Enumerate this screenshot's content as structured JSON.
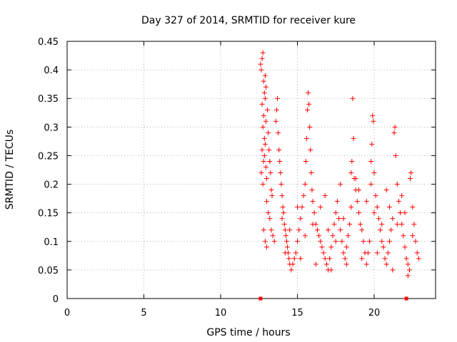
{
  "chart_data": {
    "type": "scatter",
    "title": "Day 327 of 2014, SRMTID for receiver kure",
    "xlabel": "GPS time / hours",
    "ylabel": "SRMTID / TECUs",
    "xlim": [
      0,
      24
    ],
    "ylim": [
      0,
      0.45
    ],
    "x_ticks": [
      0,
      5,
      10,
      15,
      20
    ],
    "x_tick_labels": [
      "0",
      "5",
      "10",
      "15",
      "20"
    ],
    "y_ticks": [
      0,
      0.05,
      0.1,
      0.15,
      0.2,
      0.25,
      0.3,
      0.35,
      0.4,
      0.45
    ],
    "y_tick_labels": [
      "0",
      "0.05",
      "0.1",
      "0.15",
      "0.2",
      "0.25",
      "0.3",
      "0.35",
      "0.4",
      "0.45"
    ],
    "grid": true,
    "marker": "plus",
    "color": "#ff0000",
    "zero_markers": {
      "marker": "square",
      "x": [
        12.6,
        22.1
      ],
      "y": [
        0,
        0
      ]
    },
    "series": [
      {
        "name": "SRMTID",
        "points": [
          [
            12.6,
            0.41
          ],
          [
            12.65,
            0.4
          ],
          [
            12.7,
            0.42
          ],
          [
            12.75,
            0.43
          ],
          [
            12.8,
            0.38
          ],
          [
            12.85,
            0.36
          ],
          [
            12.9,
            0.39
          ],
          [
            12.95,
            0.37
          ],
          [
            12.7,
            0.34
          ],
          [
            12.8,
            0.32
          ],
          [
            12.9,
            0.35
          ],
          [
            12.75,
            0.3
          ],
          [
            12.85,
            0.28
          ],
          [
            12.95,
            0.31
          ],
          [
            12.7,
            0.26
          ],
          [
            12.8,
            0.24
          ],
          [
            12.9,
            0.27
          ],
          [
            12.65,
            0.22
          ],
          [
            12.75,
            0.2
          ],
          [
            12.85,
            0.25
          ],
          [
            12.95,
            0.23
          ],
          [
            13.0,
            0.21
          ],
          [
            13.05,
            0.33
          ],
          [
            13.1,
            0.29
          ],
          [
            13.15,
            0.26
          ],
          [
            13.2,
            0.24
          ],
          [
            13.25,
            0.22
          ],
          [
            13.3,
            0.19
          ],
          [
            13.35,
            0.18
          ],
          [
            13.0,
            0.17
          ],
          [
            13.1,
            0.15
          ],
          [
            13.2,
            0.14
          ],
          [
            13.3,
            0.12
          ],
          [
            13.4,
            0.11
          ],
          [
            13.5,
            0.1
          ],
          [
            12.8,
            0.12
          ],
          [
            12.9,
            0.1
          ],
          [
            13.0,
            0.09
          ],
          [
            13.6,
            0.31
          ],
          [
            13.65,
            0.33
          ],
          [
            13.7,
            0.35
          ],
          [
            13.75,
            0.29
          ],
          [
            13.8,
            0.26
          ],
          [
            13.85,
            0.24
          ],
          [
            13.9,
            0.22
          ],
          [
            13.95,
            0.2
          ],
          [
            14.0,
            0.18
          ],
          [
            14.05,
            0.16
          ],
          [
            14.1,
            0.15
          ],
          [
            14.15,
            0.13
          ],
          [
            14.2,
            0.12
          ],
          [
            14.25,
            0.11
          ],
          [
            14.3,
            0.1
          ],
          [
            14.35,
            0.09
          ],
          [
            14.4,
            0.08
          ],
          [
            14.45,
            0.07
          ],
          [
            14.5,
            0.06
          ],
          [
            14.6,
            0.05
          ],
          [
            14.7,
            0.06
          ],
          [
            14.8,
            0.07
          ],
          [
            14.9,
            0.08
          ],
          [
            15.0,
            0.1
          ],
          [
            15.1,
            0.12
          ],
          [
            15.2,
            0.14
          ],
          [
            15.3,
            0.16
          ],
          [
            15.4,
            0.18
          ],
          [
            15.5,
            0.2
          ],
          [
            15.55,
            0.24
          ],
          [
            15.6,
            0.28
          ],
          [
            15.65,
            0.33
          ],
          [
            15.7,
            0.36
          ],
          [
            15.75,
            0.34
          ],
          [
            15.8,
            0.3
          ],
          [
            15.85,
            0.26
          ],
          [
            15.9,
            0.22
          ],
          [
            15.95,
            0.19
          ],
          [
            16.0,
            0.17
          ],
          [
            16.1,
            0.15
          ],
          [
            16.2,
            0.13
          ],
          [
            16.3,
            0.12
          ],
          [
            16.4,
            0.11
          ],
          [
            16.5,
            0.1
          ],
          [
            16.6,
            0.09
          ],
          [
            16.7,
            0.08
          ],
          [
            16.8,
            0.07
          ],
          [
            16.9,
            0.06
          ],
          [
            17.0,
            0.05
          ],
          [
            17.1,
            0.07
          ],
          [
            17.2,
            0.09
          ],
          [
            17.3,
            0.11
          ],
          [
            17.4,
            0.13
          ],
          [
            17.5,
            0.15
          ],
          [
            17.6,
            0.17
          ],
          [
            17.7,
            0.14
          ],
          [
            17.8,
            0.12
          ],
          [
            17.9,
            0.1
          ],
          [
            18.0,
            0.08
          ],
          [
            18.1,
            0.07
          ],
          [
            18.2,
            0.09
          ],
          [
            18.3,
            0.11
          ],
          [
            18.4,
            0.13
          ],
          [
            18.5,
            0.22
          ],
          [
            18.55,
            0.24
          ],
          [
            18.6,
            0.35
          ],
          [
            18.65,
            0.28
          ],
          [
            18.7,
            0.21
          ],
          [
            18.8,
            0.19
          ],
          [
            18.9,
            0.17
          ],
          [
            19.0,
            0.15
          ],
          [
            19.1,
            0.13
          ],
          [
            19.2,
            0.12
          ],
          [
            19.3,
            0.1
          ],
          [
            19.4,
            0.08
          ],
          [
            19.5,
            0.06
          ],
          [
            19.6,
            0.08
          ],
          [
            19.7,
            0.1
          ],
          [
            19.8,
            0.24
          ],
          [
            19.85,
            0.27
          ],
          [
            19.9,
            0.32
          ],
          [
            19.95,
            0.31
          ],
          [
            20.0,
            0.22
          ],
          [
            20.1,
            0.18
          ],
          [
            20.2,
            0.16
          ],
          [
            20.3,
            0.14
          ],
          [
            20.4,
            0.12
          ],
          [
            20.5,
            0.1
          ],
          [
            20.6,
            0.09
          ],
          [
            20.7,
            0.07
          ],
          [
            20.8,
            0.06
          ],
          [
            20.9,
            0.08
          ],
          [
            21.0,
            0.1
          ],
          [
            21.1,
            0.12
          ],
          [
            21.2,
            0.14
          ],
          [
            21.3,
            0.29
          ],
          [
            21.35,
            0.3
          ],
          [
            21.4,
            0.25
          ],
          [
            21.5,
            0.2
          ],
          [
            21.6,
            0.17
          ],
          [
            21.7,
            0.15
          ],
          [
            21.8,
            0.13
          ],
          [
            21.9,
            0.11
          ],
          [
            22.0,
            0.09
          ],
          [
            22.1,
            0.07
          ],
          [
            22.2,
            0.06
          ],
          [
            22.3,
            0.05
          ],
          [
            22.35,
            0.21
          ],
          [
            22.4,
            0.22
          ],
          [
            22.5,
            0.16
          ],
          [
            22.6,
            0.13
          ],
          [
            22.7,
            0.1
          ],
          [
            22.8,
            0.08
          ],
          [
            22.9,
            0.07
          ],
          [
            14.0,
            0.14
          ],
          [
            14.5,
            0.12
          ],
          [
            15.0,
            0.16
          ],
          [
            15.5,
            0.11
          ],
          [
            16.0,
            0.13
          ],
          [
            16.5,
            0.16
          ],
          [
            17.0,
            0.12
          ],
          [
            17.5,
            0.1
          ],
          [
            18.0,
            0.14
          ],
          [
            18.5,
            0.16
          ],
          [
            19.0,
            0.19
          ],
          [
            19.5,
            0.17
          ],
          [
            20.0,
            0.15
          ],
          [
            20.5,
            0.13
          ],
          [
            21.0,
            0.16
          ],
          [
            21.5,
            0.13
          ],
          [
            22.0,
            0.15
          ],
          [
            22.5,
            0.11
          ],
          [
            14.2,
            0.08
          ],
          [
            15.2,
            0.07
          ],
          [
            16.2,
            0.06
          ],
          [
            17.2,
            0.05
          ],
          [
            18.2,
            0.06
          ],
          [
            19.2,
            0.07
          ],
          [
            20.2,
            0.08
          ],
          [
            21.2,
            0.05
          ],
          [
            22.2,
            0.04
          ],
          [
            16.8,
            0.18
          ],
          [
            17.8,
            0.2
          ],
          [
            18.8,
            0.21
          ],
          [
            19.8,
            0.2
          ],
          [
            20.8,
            0.19
          ],
          [
            21.8,
            0.18
          ]
        ]
      }
    ]
  }
}
